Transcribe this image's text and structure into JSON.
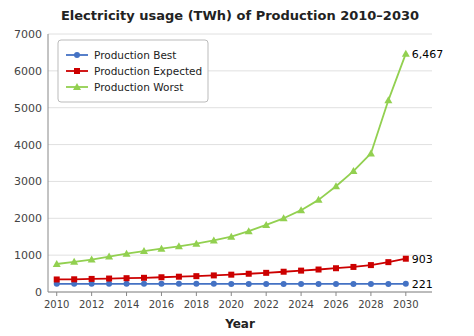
{
  "chart_data": {
    "type": "line",
    "title": "Electricity usage (TWh) of Production 2010–2030",
    "x_label": "Year",
    "x": [
      2010,
      2011,
      2012,
      2013,
      2014,
      2015,
      2016,
      2017,
      2018,
      2019,
      2020,
      2021,
      2022,
      2023,
      2024,
      2025,
      2026,
      2027,
      2028,
      2029,
      2030
    ],
    "series": [
      {
        "name": "Production Best",
        "color": "#4472C4",
        "marker": "circle",
        "values": [
          222,
          221,
          221,
          221,
          222,
          221,
          221,
          221,
          221,
          221,
          220,
          220,
          220,
          220,
          220,
          220,
          220,
          220,
          220,
          220,
          221
        ]
      },
      {
        "name": "Production Expected",
        "color": "#CC0000",
        "marker": "square",
        "values": [
          340,
          345,
          355,
          365,
          375,
          385,
          400,
          415,
          430,
          450,
          470,
          495,
          520,
          550,
          580,
          610,
          645,
          680,
          730,
          810,
          903
        ]
      },
      {
        "name": "Production Worst",
        "color": "#92D050",
        "marker": "triangle",
        "values": [
          760,
          820,
          880,
          960,
          1040,
          1110,
          1175,
          1240,
          1310,
          1400,
          1500,
          1650,
          1820,
          2000,
          2220,
          2500,
          2870,
          3280,
          3760,
          5200,
          6467
        ]
      }
    ],
    "annotations": [
      "221",
      "903",
      "6,467"
    ],
    "xlim": [
      2009.5,
      2031.5
    ],
    "xticks": [
      2010,
      2012,
      2014,
      2016,
      2018,
      2020,
      2022,
      2024,
      2026,
      2028,
      2030
    ],
    "ylim": [
      0,
      7000
    ],
    "yticks": [
      0,
      1000,
      2000,
      3000,
      4000,
      5000,
      6000,
      7000
    ],
    "grid": true,
    "legend": "upper left"
  }
}
